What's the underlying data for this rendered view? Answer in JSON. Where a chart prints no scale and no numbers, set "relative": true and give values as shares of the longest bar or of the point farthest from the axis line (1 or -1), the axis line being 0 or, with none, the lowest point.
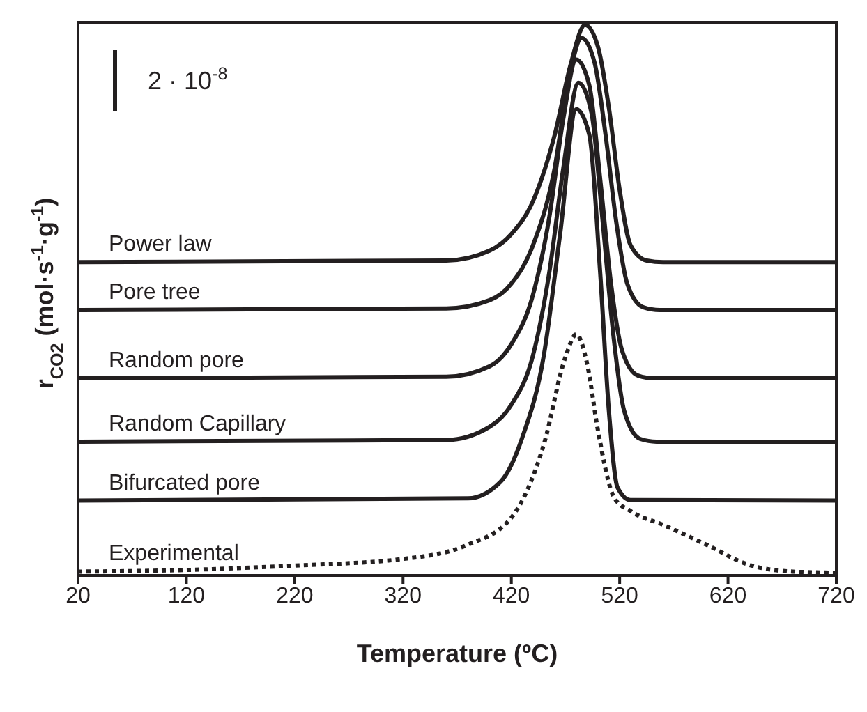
{
  "chart_data": {
    "type": "line",
    "relative": true,
    "xlabel": "Temperature (ºC)",
    "ylabel": "r$_{CO2}$ (mol·s$^{-1}$·g$^{-1}$)",
    "annotations": [
      "2 · 10$^{-8}$"
    ],
    "xlim": [
      20,
      720
    ],
    "xticks": [
      20,
      120,
      220,
      320,
      420,
      520,
      620,
      720
    ],
    "tick_labels": "x",
    "marker": "none",
    "series": [
      {
        "name": "Power law",
        "color": "#231f20",
        "line_style": "solid",
        "x": [
          20,
          360,
          400,
          420,
          440,
          460,
          475,
          488,
          500,
          510,
          520,
          530,
          545,
          560,
          720
        ],
        "values": [
          0.569,
          0.572,
          0.59,
          0.62,
          0.68,
          0.8,
          0.93,
          1.0,
          0.96,
          0.85,
          0.7,
          0.6,
          0.572,
          0.569,
          0.569
        ]
      },
      {
        "name": "Pore tree",
        "color": "#231f20",
        "line_style": "solid",
        "x": [
          20,
          360,
          400,
          420,
          440,
          460,
          472,
          485,
          497,
          507,
          517,
          527,
          542,
          557,
          720
        ],
        "values": [
          0.482,
          0.485,
          0.5,
          0.53,
          0.6,
          0.74,
          0.89,
          0.976,
          0.93,
          0.8,
          0.64,
          0.53,
          0.487,
          0.482,
          0.482
        ]
      },
      {
        "name": "Random pore",
        "color": "#231f20",
        "line_style": "solid",
        "x": [
          20,
          360,
          400,
          420,
          440,
          455,
          468,
          480,
          492,
          502,
          512,
          522,
          537,
          552,
          720
        ],
        "values": [
          0.358,
          0.361,
          0.38,
          0.42,
          0.51,
          0.65,
          0.83,
          0.937,
          0.89,
          0.72,
          0.53,
          0.41,
          0.363,
          0.358,
          0.358
        ]
      },
      {
        "name": "Random Capillary",
        "color": "#231f20",
        "line_style": "solid",
        "x": [
          20,
          360,
          400,
          420,
          440,
          455,
          468,
          482,
          494,
          504,
          514,
          524,
          539,
          554,
          720
        ],
        "values": [
          0.243,
          0.246,
          0.27,
          0.31,
          0.4,
          0.55,
          0.74,
          0.895,
          0.84,
          0.65,
          0.44,
          0.3,
          0.248,
          0.243,
          0.243
        ]
      },
      {
        "name": "Bifurcated pore",
        "color": "#231f20",
        "line_style": "solid",
        "x": [
          20,
          380,
          410,
          430,
          450,
          465,
          480,
          492,
          502,
          510,
          518,
          530,
          720
        ],
        "values": [
          0.136,
          0.14,
          0.17,
          0.25,
          0.4,
          0.62,
          0.847,
          0.8,
          0.55,
          0.3,
          0.16,
          0.137,
          0.136
        ]
      },
      {
        "name": "Experimental",
        "color": "#231f20",
        "line_style": "dotted",
        "x": [
          20,
          120,
          220,
          320,
          380,
          420,
          450,
          470,
          480,
          490,
          500,
          515,
          530,
          560,
          600,
          640,
          680,
          720
        ],
        "values": [
          0.007,
          0.01,
          0.018,
          0.03,
          0.056,
          0.105,
          0.238,
          0.397,
          0.438,
          0.384,
          0.263,
          0.141,
          0.117,
          0.092,
          0.056,
          0.019,
          0.007,
          0.005
        ]
      }
    ]
  }
}
